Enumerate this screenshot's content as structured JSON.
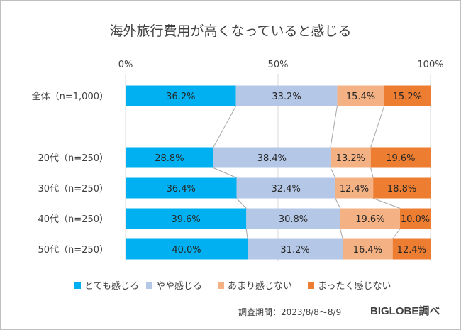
{
  "chart_data": {
    "type": "bar",
    "orientation": "horizontal",
    "stacked": true,
    "percent_stacked": true,
    "title": "海外旅行費用が高くなっていると感じる",
    "categories": [
      "全体（n=1,000）",
      "20代（n=250）",
      "30代（n=250）",
      "40代（n=250）",
      "50代（n=250）"
    ],
    "series": [
      {
        "name": "とても感じる",
        "color": "#00b0f0",
        "values": [
          36.2,
          28.8,
          36.4,
          39.6,
          40.0
        ],
        "labels": [
          "36.2%",
          "28.8%",
          "36.4%",
          "39.6%",
          "40.0%"
        ]
      },
      {
        "name": "やや感じる",
        "color": "#b4c7e7",
        "values": [
          33.2,
          38.4,
          32.4,
          30.8,
          31.2
        ],
        "labels": [
          "33.2%",
          "38.4%",
          "32.4%",
          "30.8%",
          "31.2%"
        ]
      },
      {
        "name": "あまり感じない",
        "color": "#f4b183",
        "values": [
          15.4,
          13.2,
          12.4,
          19.6,
          16.4
        ],
        "labels": [
          "15.4%",
          "13.2%",
          "12.4%",
          "19.6%",
          "16.4%"
        ]
      },
      {
        "name": "まったく感じない",
        "color": "#ed7d31",
        "values": [
          15.2,
          19.6,
          18.8,
          10.0,
          12.4
        ],
        "labels": [
          "15.2%",
          "19.6%",
          "18.8%",
          "10.0%",
          "12.4%"
        ]
      }
    ],
    "xlim": [
      0,
      100
    ],
    "x_ticks": [
      "0%",
      "50%",
      "100%"
    ],
    "grid": true,
    "series_lines": true,
    "legend_position": "bottom"
  },
  "footer": {
    "source": "調査期間：2023/8/8～8/9",
    "brand": "BIGLOBE調べ"
  }
}
